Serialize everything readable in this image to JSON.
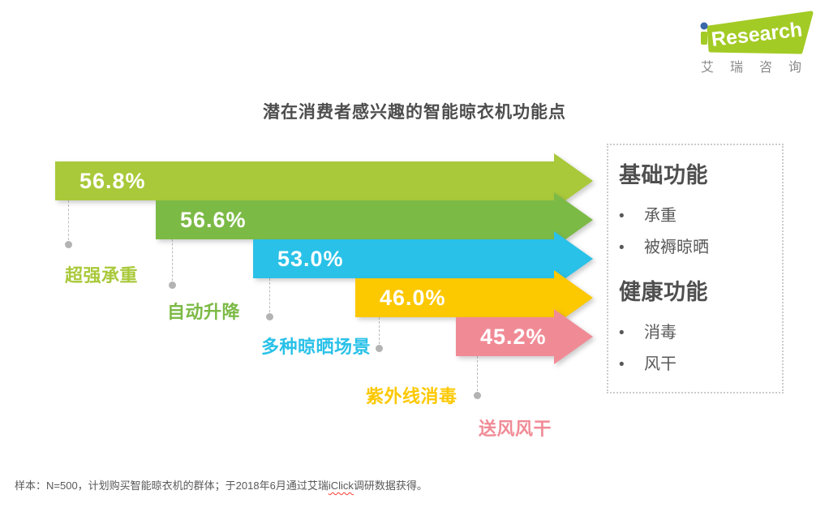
{
  "header": {
    "logo": {
      "brand": "iResearch",
      "brand_display_rest": "Research",
      "subtext": "艾瑞咨询",
      "green": "#a3cb25",
      "blue": "#3a68a8"
    }
  },
  "title": "潜在消费者感兴趣的智能晾衣机功能点",
  "chart_data": {
    "type": "bar",
    "subtype": "horizontal-arrow-funnel",
    "title": "潜在消费者感兴趣的智能晾衣机功能点",
    "categories": [
      "超强承重",
      "自动升降",
      "多种晾晒场景",
      "紫外线消毒",
      "送风风干"
    ],
    "values": [
      56.8,
      56.6,
      53.0,
      46.0,
      45.2
    ],
    "value_labels": [
      "56.8%",
      "56.6%",
      "53.0%",
      "46.0%",
      "45.2%"
    ],
    "colors": [
      "#a9c93a",
      "#7cba46",
      "#29c1e8",
      "#fcc800",
      "#f08b96"
    ],
    "unit": "%",
    "grid": false,
    "legend_position": "right"
  },
  "side_panel": {
    "groups": [
      {
        "heading": "基础功能",
        "items": [
          "承重",
          "被褥晾晒"
        ]
      },
      {
        "heading": "健康功能",
        "items": [
          "消毒",
          "风干"
        ]
      }
    ]
  },
  "footnote": {
    "prefix": "样本：N=500，计划购买智能晾衣机的群体；于2018年6月通过艾瑞",
    "underlined": "iClick",
    "suffix": "调研数据获得。"
  }
}
